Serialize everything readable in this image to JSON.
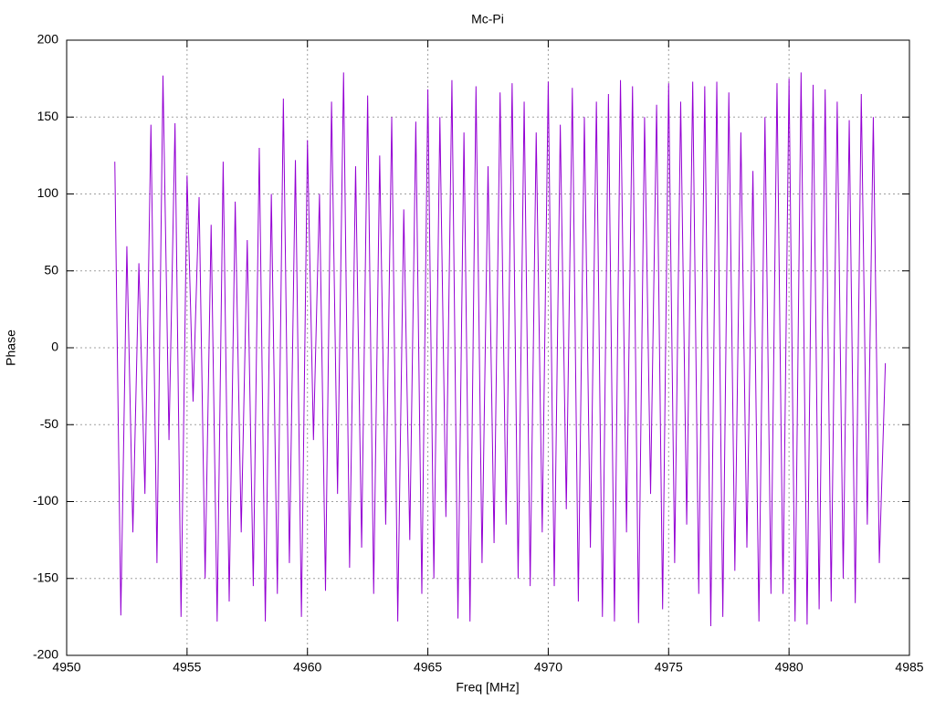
{
  "chart_data": {
    "type": "line",
    "title": "Mc-Pi",
    "x_label": "Freq [MHz]",
    "y_label": "Phase",
    "xlim": [
      4950,
      4985
    ],
    "xticks": [
      4950,
      4955,
      4960,
      4965,
      4970,
      4975,
      4980,
      4985
    ],
    "ylim": [
      -200,
      200
    ],
    "yticks": [
      -200,
      -150,
      -100,
      -50,
      0,
      50,
      100,
      150,
      200
    ],
    "grid": true,
    "x": [
      4952,
      4952.25,
      4952.5,
      4952.75,
      4953,
      4953.25,
      4953.5,
      4953.75,
      4954,
      4954.25,
      4954.5,
      4954.75,
      4955,
      4955.25,
      4955.5,
      4955.75,
      4956,
      4956.25,
      4956.5,
      4956.75,
      4957,
      4957.25,
      4957.5,
      4957.75,
      4958,
      4958.25,
      4958.5,
      4958.75,
      4959,
      4959.25,
      4959.5,
      4959.75,
      4960,
      4960.25,
      4960.5,
      4960.75,
      4961,
      4961.25,
      4961.5,
      4961.75,
      4962,
      4962.25,
      4962.5,
      4962.75,
      4963,
      4963.25,
      4963.5,
      4963.75,
      4964,
      4964.25,
      4964.5,
      4964.75,
      4965,
      4965.25,
      4965.5,
      4965.75,
      4966,
      4966.25,
      4966.5,
      4966.75,
      4967,
      4967.25,
      4967.5,
      4967.75,
      4968,
      4968.25,
      4968.5,
      4968.75,
      4969,
      4969.25,
      4969.5,
      4969.75,
      4970,
      4970.25,
      4970.5,
      4970.75,
      4971,
      4971.25,
      4971.5,
      4971.75,
      4972,
      4972.25,
      4972.5,
      4972.75,
      4973,
      4973.25,
      4973.5,
      4973.75,
      4974,
      4974.25,
      4974.5,
      4974.75,
      4975,
      4975.25,
      4975.5,
      4975.75,
      4976,
      4976.25,
      4976.5,
      4976.75,
      4977,
      4977.25,
      4977.5,
      4977.75,
      4978,
      4978.25,
      4978.5,
      4978.75,
      4979,
      4979.25,
      4979.5,
      4979.75,
      4980,
      4980.25,
      4980.5,
      4980.75,
      4981,
      4981.25,
      4981.5,
      4981.75,
      4982,
      4982.25,
      4982.5,
      4982.75,
      4983,
      4983.25,
      4983.5,
      4983.75,
      4984
    ],
    "series": [
      {
        "color": "#9400d3",
        "values": [
          121,
          -174,
          66,
          -120,
          55,
          -95,
          145,
          -140,
          177,
          -60,
          146,
          -175,
          112,
          -35,
          98,
          -150,
          80,
          -178,
          121,
          -165,
          95,
          -120,
          70,
          -155,
          130,
          -178,
          100,
          -160,
          162,
          -140,
          122,
          -175,
          135,
          -60,
          100,
          -158,
          160,
          -95,
          179,
          -143,
          118,
          -130,
          164,
          -160,
          125,
          -115,
          150,
          -178,
          90,
          -125,
          147,
          -160,
          168,
          -150,
          150,
          -110,
          174,
          -176,
          140,
          -178,
          170,
          -140,
          118,
          -127,
          166,
          -115,
          172,
          -150,
          160,
          -155,
          140,
          -120,
          173,
          -155,
          145,
          -105,
          169,
          -165,
          150,
          -130,
          160,
          -175,
          165,
          -178,
          174,
          -120,
          170,
          -179,
          150,
          -95,
          158,
          -170,
          172,
          -140,
          160,
          -115,
          173,
          -160,
          170,
          -181,
          173,
          -175,
          166,
          -145,
          140,
          -130,
          115,
          -178,
          150,
          -160,
          172,
          -160,
          175,
          -178,
          179,
          -180,
          171,
          -170,
          168,
          -165,
          160,
          -150,
          148,
          -166,
          165,
          -115,
          150,
          -140,
          -10
        ]
      }
    ]
  }
}
